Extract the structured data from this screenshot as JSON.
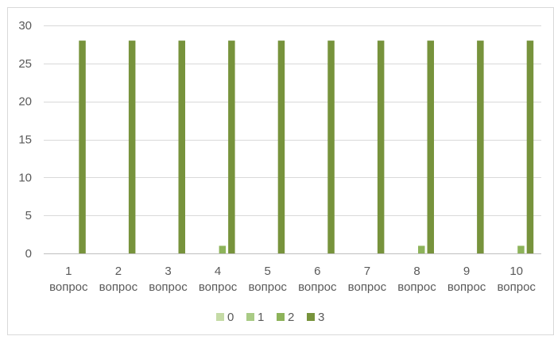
{
  "chart_data": {
    "type": "bar",
    "title": "",
    "xlabel": "",
    "ylabel": "",
    "ylim": [
      0,
      30
    ],
    "yticks": [
      0,
      5,
      10,
      15,
      20,
      25,
      30
    ],
    "grid": true,
    "legend_position": "bottom",
    "categories": [
      [
        "1",
        "вопрос"
      ],
      [
        "2",
        "вопрос"
      ],
      [
        "3",
        "вопрос"
      ],
      [
        "4",
        "вопрос"
      ],
      [
        "5",
        "вопрос"
      ],
      [
        "6",
        "вопрос"
      ],
      [
        "7",
        "вопрос"
      ],
      [
        "8",
        "вопрос"
      ],
      [
        "9",
        "вопрос"
      ],
      [
        "10",
        "вопрос"
      ]
    ],
    "series": [
      {
        "name": "0",
        "color": "#c5dba6",
        "values": [
          0,
          0,
          0,
          0,
          0,
          0,
          0,
          0,
          0,
          0
        ]
      },
      {
        "name": "1",
        "color": "#a9cb85",
        "values": [
          0,
          0,
          0,
          0,
          0,
          0,
          0,
          0,
          0,
          0
        ]
      },
      {
        "name": "2",
        "color": "#8db35a",
        "values": [
          0,
          0,
          0,
          1,
          0,
          0,
          0,
          1,
          0,
          1
        ]
      },
      {
        "name": "3",
        "color": "#77933c",
        "values": [
          28,
          28,
          28,
          28,
          28,
          28,
          28,
          28,
          28,
          28
        ]
      }
    ]
  }
}
